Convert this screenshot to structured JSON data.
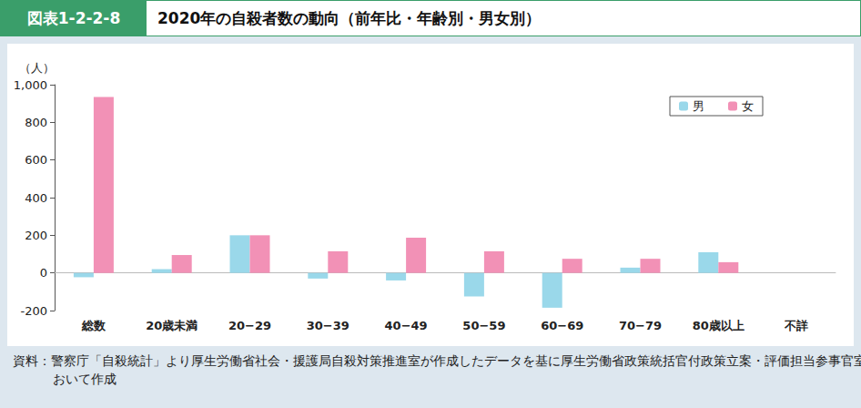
{
  "chart_data": {
    "type": "bar",
    "figure_label": "図表1-2-2-8",
    "title": "2020年の自殺者数の動向（前年比・年齢別・男女別）",
    "ylabel": "（人）",
    "source": "資料：警察庁「自殺統計」より厚生労働省社会・援護局自殺対策推進室が作成したデータを基に厚生労働省政策統括官付政策立案・評価担当参事官室において作成",
    "categories": [
      "総数",
      "20歳未満",
      "20−29",
      "30−39",
      "40−49",
      "50−59",
      "60−69",
      "70−79",
      "80歳以上",
      "不詳"
    ],
    "series": [
      {
        "name": "男",
        "color": "#9ad8ea",
        "values": [
          -23,
          20,
          200,
          -30,
          -40,
          -125,
          -185,
          28,
          110,
          null
        ]
      },
      {
        "name": "女",
        "color": "#f291b6",
        "values": [
          935,
          95,
          200,
          115,
          187,
          115,
          75,
          75,
          57,
          null
        ]
      }
    ],
    "ylim": [
      -200,
      1000
    ],
    "yticks": [
      -200,
      0,
      200,
      400,
      600,
      800,
      {
        "value": 1000,
        "label": "1,000"
      }
    ],
    "grid": false,
    "legend": "upper right"
  }
}
